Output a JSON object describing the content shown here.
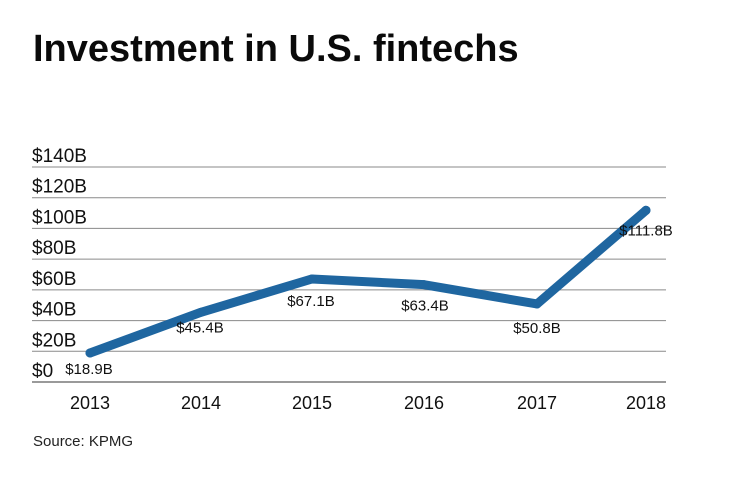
{
  "title": "Investment in U.S. fintechs",
  "source": "Source: KPMG",
  "colors": {
    "line": "#1f66a0",
    "grid": "#8a8a8a",
    "axis": "#9a9a9a",
    "text": "#111111"
  },
  "chart_data": {
    "type": "line",
    "title": "Investment in U.S. fintechs",
    "xlabel": "",
    "ylabel": "",
    "categories": [
      "2013",
      "2014",
      "2015",
      "2016",
      "2017",
      "2018"
    ],
    "series": [
      {
        "name": "Investment",
        "values": [
          18.9,
          45.4,
          67.1,
          63.4,
          50.8,
          111.8
        ]
      }
    ],
    "data_labels": [
      "$18.9B",
      "$45.4B",
      "$67.1B",
      "$63.4B",
      "$50.8B",
      "$111.8B"
    ],
    "yticks": [
      0,
      20,
      40,
      60,
      80,
      100,
      120,
      140
    ],
    "ytick_labels": [
      "$0",
      "$20B",
      "$40B",
      "$60B",
      "$80B",
      "$100B",
      "$120B",
      "$140B"
    ],
    "ylim": [
      0,
      140
    ],
    "grid": true,
    "legend": "none"
  }
}
